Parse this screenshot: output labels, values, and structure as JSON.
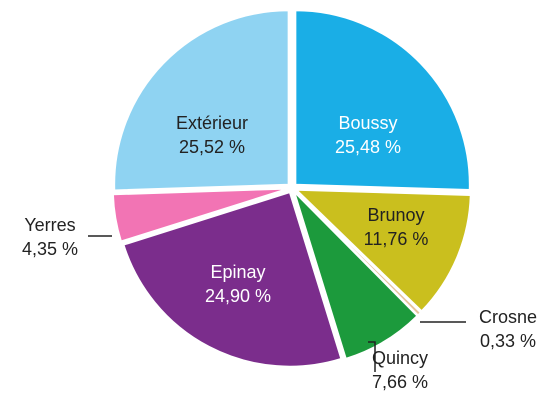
{
  "chart_data": {
    "type": "pie",
    "categories": [
      "Boussy",
      "Brunoy",
      "Crosne",
      "Quincy",
      "Epinay",
      "Yerres",
      "Extérieur"
    ],
    "values": [
      25.48,
      11.76,
      0.33,
      7.66,
      24.9,
      4.35,
      25.52
    ],
    "value_labels": [
      "25,48 %",
      "11,76 %",
      "0,33 %",
      "7,66 %",
      "24,90 %",
      "4,35 %",
      "25,52 %"
    ],
    "colors": [
      "#1aaee6",
      "#cabf1e",
      "#e6c49c",
      "#1c9a3c",
      "#7b2d8c",
      "#f274b4",
      "#8fd3f2"
    ]
  }
}
